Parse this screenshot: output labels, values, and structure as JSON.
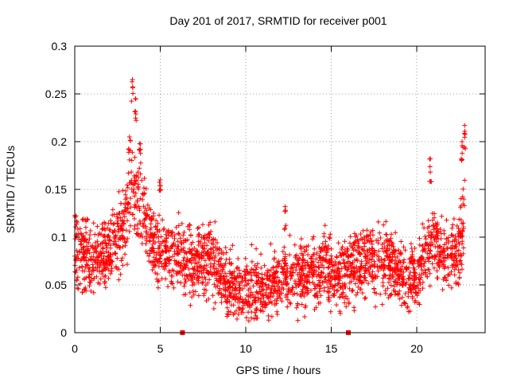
{
  "chart_data": {
    "type": "scatter",
    "title": "Day 201 of 2017, SRMTID for receiver p001",
    "xlabel": "GPS time / hours",
    "ylabel": "SRMTID / TECUs",
    "xlim": [
      0,
      24
    ],
    "ylim": [
      0,
      0.3
    ],
    "xticks": [
      0,
      5,
      10,
      15,
      20
    ],
    "xtick_labels": [
      "0",
      "5",
      "10",
      "15",
      "20"
    ],
    "yticks": [
      0,
      0.05,
      0.1,
      0.15,
      0.2,
      0.25,
      0.3
    ],
    "ytick_labels": [
      "0",
      "0.05",
      "0.1",
      "0.15",
      "0.2",
      "0.25",
      "0.3"
    ],
    "grid": true,
    "marker": "+",
    "series_color": "#ff0000",
    "zero_markers_x": [
      6.3,
      16.0
    ],
    "profile": [
      [
        0.0,
        0.09
      ],
      [
        0.5,
        0.085
      ],
      [
        1.0,
        0.075
      ],
      [
        1.5,
        0.08
      ],
      [
        2.0,
        0.085
      ],
      [
        2.5,
        0.1
      ],
      [
        3.0,
        0.12
      ],
      [
        3.3,
        0.15
      ],
      [
        3.5,
        0.16
      ],
      [
        4.0,
        0.12
      ],
      [
        4.5,
        0.095
      ],
      [
        5.0,
        0.085
      ],
      [
        5.5,
        0.08
      ],
      [
        6.0,
        0.085
      ],
      [
        6.5,
        0.075
      ],
      [
        7.0,
        0.07
      ],
      [
        7.5,
        0.078
      ],
      [
        8.0,
        0.08
      ],
      [
        8.5,
        0.065
      ],
      [
        9.0,
        0.045
      ],
      [
        9.5,
        0.048
      ],
      [
        10.0,
        0.05
      ],
      [
        10.5,
        0.048
      ],
      [
        11.0,
        0.045
      ],
      [
        11.5,
        0.05
      ],
      [
        12.0,
        0.055
      ],
      [
        12.5,
        0.058
      ],
      [
        13.0,
        0.06
      ],
      [
        13.5,
        0.06
      ],
      [
        14.0,
        0.065
      ],
      [
        14.5,
        0.065
      ],
      [
        15.0,
        0.065
      ],
      [
        15.5,
        0.06
      ],
      [
        16.0,
        0.065
      ],
      [
        16.5,
        0.07
      ],
      [
        17.0,
        0.075
      ],
      [
        17.5,
        0.075
      ],
      [
        18.0,
        0.075
      ],
      [
        18.5,
        0.07
      ],
      [
        19.0,
        0.065
      ],
      [
        19.5,
        0.055
      ],
      [
        20.0,
        0.06
      ],
      [
        20.5,
        0.085
      ],
      [
        21.0,
        0.095
      ],
      [
        21.5,
        0.085
      ],
      [
        22.0,
        0.075
      ],
      [
        22.5,
        0.09
      ],
      [
        22.8,
        0.13
      ]
    ],
    "peaks": [
      {
        "x": 3.37,
        "y": 0.265
      },
      {
        "x": 3.55,
        "y": 0.245
      },
      {
        "x": 3.2,
        "y": 0.205
      },
      {
        "x": 3.8,
        "y": 0.198
      },
      {
        "x": 20.8,
        "y": 0.182
      },
      {
        "x": 22.8,
        "y": 0.217
      },
      {
        "x": 22.65,
        "y": 0.2
      },
      {
        "x": 12.3,
        "y": 0.132
      },
      {
        "x": 5.0,
        "y": 0.16
      }
    ],
    "point_count": 2600
  }
}
